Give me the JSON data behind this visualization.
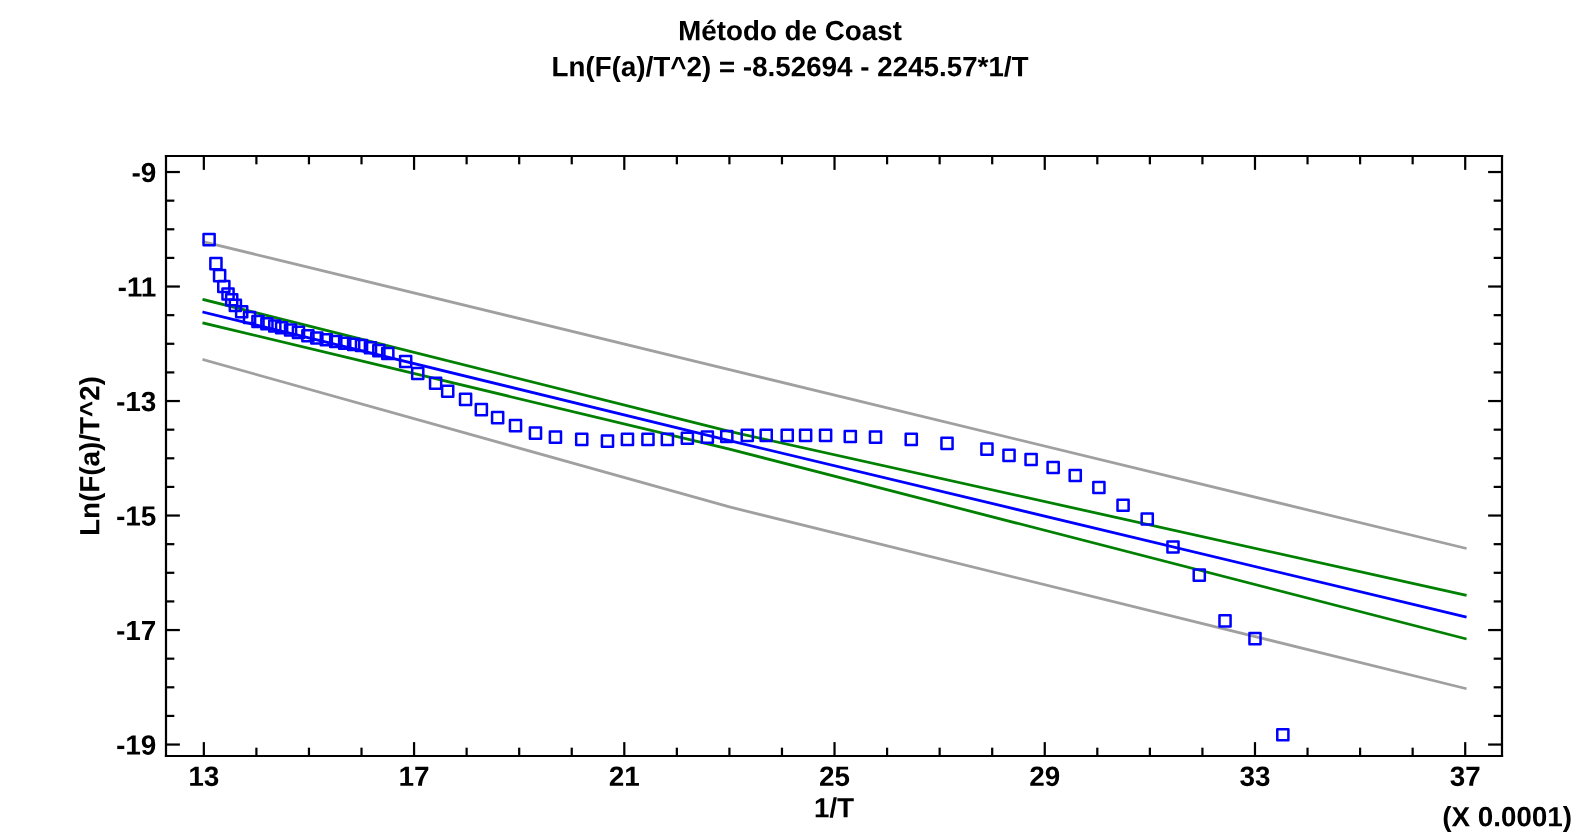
{
  "chart_data": {
    "type": "scatter",
    "title": "Método de Coast",
    "subtitle": "Ln(F(a)/T^2) = -8.52694 - 2245.57*1/T",
    "xlabel": "1/T",
    "ylabel": "Ln(F(a)/T^2)",
    "annotations": [
      "(X 0.0001)"
    ],
    "xlim": [
      12.28,
      37.7
    ],
    "ylim": [
      -19.2,
      -8.72
    ],
    "xticks": [
      13,
      {
        "value": 14,
        "label": null
      },
      {
        "value": 15,
        "label": null
      },
      {
        "value": 16,
        "label": null
      },
      17,
      {
        "value": 18,
        "label": null
      },
      {
        "value": 19,
        "label": null
      },
      {
        "value": 20,
        "label": null
      },
      21,
      {
        "value": 22,
        "label": null
      },
      {
        "value": 23,
        "label": null
      },
      {
        "value": 24,
        "label": null
      },
      25,
      {
        "value": 26,
        "label": null
      },
      {
        "value": 27,
        "label": null
      },
      {
        "value": 28,
        "label": null
      },
      29,
      {
        "value": 30,
        "label": null
      },
      {
        "value": 31,
        "label": null
      },
      {
        "value": 32,
        "label": null
      },
      33,
      {
        "value": 34,
        "label": null
      },
      {
        "value": 35,
        "label": null
      },
      {
        "value": 36,
        "label": null
      },
      37
    ],
    "yticks": [
      -9,
      {
        "value": -9.5,
        "label": null
      },
      {
        "value": -10,
        "label": null
      },
      {
        "value": -10.5,
        "label": null
      },
      -11,
      {
        "value": -11.5,
        "label": null
      },
      {
        "value": -12,
        "label": null
      },
      {
        "value": -12.5,
        "label": null
      },
      -13,
      {
        "value": -13.5,
        "label": null
      },
      {
        "value": -14,
        "label": null
      },
      {
        "value": -14.5,
        "label": null
      },
      -15,
      {
        "value": -15.5,
        "label": null
      },
      {
        "value": -16,
        "label": null
      },
      {
        "value": -16.5,
        "label": null
      },
      -17,
      {
        "value": -17.5,
        "label": null
      },
      {
        "value": -18,
        "label": null
      },
      {
        "value": -18.5,
        "label": null
      },
      -19
    ],
    "grid": false,
    "legend": false,
    "series": [
      {
        "type": "line",
        "color": "#a0a0a0",
        "marker": "none",
        "x": [
          13,
          23,
          37
        ],
        "values": [
          -10.22,
          -12.45,
          -15.57
        ]
      },
      {
        "type": "line",
        "color": "#a0a0a0",
        "marker": "none",
        "x": [
          13,
          23,
          37
        ],
        "values": [
          -12.28,
          -14.85,
          -18.02
        ]
      },
      {
        "type": "line",
        "color": "#008000",
        "marker": "none",
        "x": [
          13,
          23,
          37
        ],
        "values": [
          -11.23,
          -13.53,
          -16.39
        ]
      },
      {
        "type": "line",
        "color": "#008000",
        "marker": "none",
        "x": [
          13,
          23,
          37
        ],
        "values": [
          -11.64,
          -13.84,
          -17.15
        ]
      },
      {
        "type": "line",
        "color": "#0000ff",
        "marker": "none",
        "x": [
          13,
          23,
          37
        ],
        "values": [
          -11.45,
          -13.69,
          -16.77
        ]
      },
      {
        "color": "#0000ff",
        "marker": "square",
        "x": [
          13.1,
          13.23,
          13.3,
          13.38,
          13.46,
          13.53,
          13.6,
          13.72,
          13.87,
          14.03,
          14.2,
          14.35,
          14.48,
          14.65,
          14.8,
          14.98,
          15.15,
          15.33,
          15.51,
          15.68,
          15.85,
          16.0,
          16.17,
          16.33,
          16.5,
          16.84,
          17.07,
          17.41,
          17.64,
          17.98,
          18.28,
          18.59,
          18.93,
          19.31,
          19.69,
          20.19,
          20.68,
          21.06,
          21.45,
          21.82,
          22.2,
          22.58,
          22.95,
          23.34,
          23.7,
          24.1,
          24.45,
          24.83,
          25.3,
          25.78,
          26.46,
          27.14,
          27.9,
          28.32,
          28.74,
          29.16,
          29.58,
          30.03,
          30.49,
          30.95,
          31.44,
          31.94,
          32.43,
          33.0,
          33.53
        ],
        "values": [
          -10.18,
          -10.6,
          -10.81,
          -11.0,
          -11.13,
          -11.23,
          -11.33,
          -11.44,
          -11.54,
          -11.61,
          -11.65,
          -11.69,
          -11.72,
          -11.76,
          -11.8,
          -11.86,
          -11.9,
          -11.93,
          -11.96,
          -11.99,
          -12.01,
          -12.03,
          -12.07,
          -12.12,
          -12.17,
          -12.31,
          -12.52,
          -12.69,
          -12.83,
          -12.97,
          -13.15,
          -13.29,
          -13.43,
          -13.56,
          -13.63,
          -13.67,
          -13.7,
          -13.67,
          -13.67,
          -13.67,
          -13.65,
          -13.63,
          -13.62,
          -13.6,
          -13.6,
          -13.6,
          -13.6,
          -13.6,
          -13.62,
          -13.63,
          -13.67,
          -13.74,
          -13.84,
          -13.95,
          -14.02,
          -14.16,
          -14.3,
          -14.51,
          -14.82,
          -15.06,
          -15.55,
          -16.04,
          -16.84,
          -17.15,
          -18.83
        ]
      }
    ]
  }
}
